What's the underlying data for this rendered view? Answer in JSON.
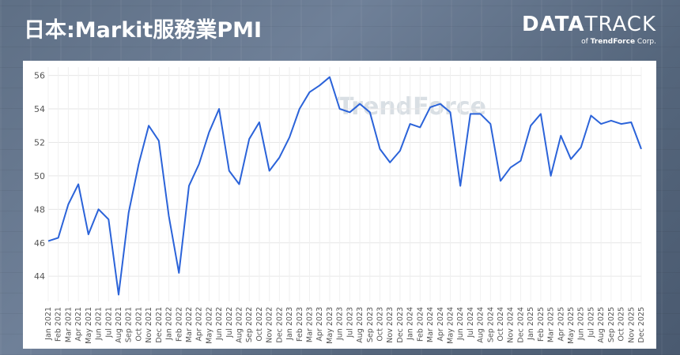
{
  "title": "日本:Markit服務業PMI",
  "brand": {
    "name_bold": "DATA",
    "name_thin": "TRACK",
    "sub_prefix": "of",
    "sub_company": "TrendForce",
    "sub_suffix": "Corp."
  },
  "watermark": "TrendForce",
  "colors": {
    "line": "#2b63d9",
    "grid": "#e6e6e6",
    "panel": "#ffffff"
  },
  "chart_data": {
    "type": "line",
    "title": "",
    "xlabel": "",
    "ylabel": "",
    "ylim": [
      42.5,
      56.5
    ],
    "yticks": [
      44,
      46,
      48,
      50,
      52,
      54,
      56
    ],
    "grid": true,
    "categories": [
      "Jan 2021",
      "Feb 2021",
      "Mar 2021",
      "Apr 2021",
      "May 2021",
      "Jun 2021",
      "Jul 2021",
      "Aug 2021",
      "Sep 2021",
      "Oct 2021",
      "Nov 2021",
      "Dec 2021",
      "Jan 2022",
      "Feb 2022",
      "Mar 2022",
      "Apr 2022",
      "May 2022",
      "Jun 2022",
      "Jul 2022",
      "Aug 2022",
      "Sep 2022",
      "Oct 2022",
      "Nov 2022",
      "Dec 2022",
      "Jan 2023",
      "Feb 2023",
      "Mar 2023",
      "Apr 2023",
      "May 2023",
      "Jun 2023",
      "Jul 2023",
      "Aug 2023",
      "Sep 2023",
      "Oct 2023",
      "Nov 2023",
      "Dec 2023",
      "Jan 2024",
      "Feb 2024",
      "Mar 2024",
      "Apr 2024",
      "May 2024",
      "Jun 2024",
      "Jul 2024",
      "Aug 2024",
      "Sep 2024",
      "Oct 2024",
      "Nov 2024",
      "Dec 2024",
      "Jan 2025",
      "Feb 2025",
      "Mar 2025",
      "Apr 2025",
      "May 2025",
      "Jun 2025",
      "Jul 2025",
      "Aug 2025",
      "Sep 2025",
      "Oct 2025",
      "Nov 2025",
      "Dec 2025"
    ],
    "series": [
      {
        "values": [
          46.1,
          46.3,
          48.3,
          49.5,
          46.5,
          48.0,
          47.4,
          42.9,
          47.8,
          50.7,
          53.0,
          52.1,
          47.6,
          44.2,
          49.4,
          50.7,
          52.6,
          54.0,
          50.3,
          49.5,
          52.2,
          53.2,
          50.3,
          51.1,
          52.3,
          54.0,
          55.0,
          55.4,
          55.9,
          54.0,
          53.8,
          54.3,
          53.8,
          51.6,
          50.8,
          51.5,
          53.1,
          52.9,
          54.1,
          54.3,
          53.8,
          49.4,
          53.7,
          53.7,
          53.1,
          49.7,
          50.5,
          50.9,
          53.0,
          53.7,
          50.0,
          52.4,
          51.0,
          51.7,
          53.6,
          53.1,
          53.3,
          53.1,
          53.2,
          51.6
        ]
      }
    ]
  }
}
